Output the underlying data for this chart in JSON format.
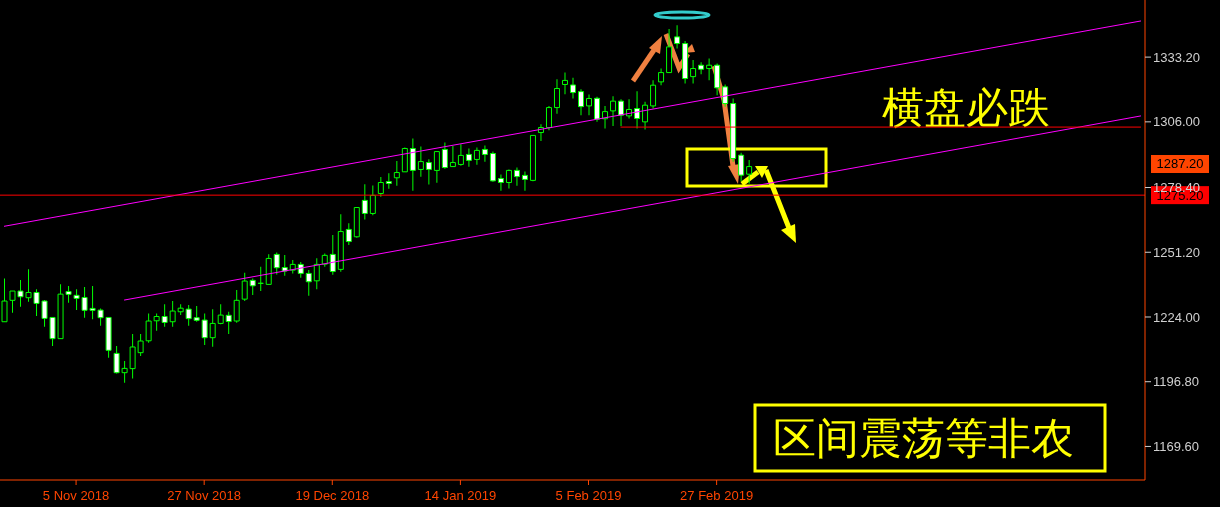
{
  "chart_data": {
    "type": "candlestick",
    "categories": [
      null,
      null,
      null,
      null,
      null,
      null,
      null,
      null,
      null,
      "5 Nov 2018",
      null,
      null,
      null,
      null,
      null,
      null,
      null,
      null,
      null,
      null,
      null,
      null,
      null,
      null,
      null,
      "27 Nov 2018",
      null,
      null,
      null,
      null,
      null,
      null,
      null,
      null,
      null,
      null,
      null,
      null,
      null,
      null,
      null,
      "19 Dec 2018",
      null,
      null,
      null,
      null,
      null,
      null,
      null,
      null,
      null,
      null,
      null,
      null,
      null,
      null,
      null,
      "14 Jan 2019",
      null,
      null,
      null,
      null,
      null,
      null,
      null,
      null,
      null,
      null,
      null,
      null,
      null,
      null,
      null,
      "5 Feb 2019",
      null,
      null,
      null,
      null,
      null,
      null,
      null,
      null,
      null,
      null,
      null,
      null,
      null,
      null,
      null,
      "27 Feb 2019",
      null,
      null,
      null,
      null,
      null,
      null,
      null,
      null,
      null,
      null,
      null,
      null,
      null,
      null,
      null,
      null,
      null,
      null,
      null,
      null,
      null,
      null,
      null,
      null,
      null,
      null,
      null,
      null,
      null,
      null,
      null,
      null,
      null,
      null,
      null,
      null,
      null,
      null,
      null,
      null,
      null,
      null,
      null,
      null,
      null,
      null,
      null,
      null,
      null,
      null,
      null,
      null,
      null
    ],
    "color": "#00ff00",
    "ohlc": [
      [
        1222,
        1240.2,
        1222,
        1230.7
      ],
      [
        1231,
        1234.9,
        1225.8,
        1234.9
      ],
      [
        1234.9,
        1239.5,
        1228.3,
        1232.5
      ],
      [
        1232.1,
        1244.1,
        1230.4,
        1234.3
      ],
      [
        1234.3,
        1235.7,
        1224.4,
        1229.7
      ],
      [
        1230.7,
        1231.1,
        1219.9,
        1223.4
      ],
      [
        1223.8,
        1223.8,
        1211.8,
        1214.9
      ],
      [
        1214.9,
        1237.8,
        1214.9,
        1233.6
      ],
      [
        1234.7,
        1237,
        1230,
        1233.5
      ],
      [
        1233.1,
        1235.7,
        1226.9,
        1231.8
      ],
      [
        1232.2,
        1236.6,
        1223.7,
        1226.8
      ],
      [
        1227.6,
        1237,
        1223.1,
        1226.8
      ],
      [
        1226.9,
        1227.6,
        1220.3,
        1223.7
      ],
      [
        1223.8,
        1223.8,
        1206.9,
        1210
      ],
      [
        1208.7,
        1211.8,
        1200.3,
        1200.6
      ],
      [
        1200.6,
        1205.5,
        1196.4,
        1202.4
      ],
      [
        1202.3,
        1216.8,
        1198.1,
        1211.4
      ],
      [
        1209,
        1216.8,
        1207.6,
        1213.9
      ],
      [
        1214,
        1225.5,
        1213.2,
        1222.3
      ],
      [
        1222.4,
        1225.5,
        1218.2,
        1224.2
      ],
      [
        1224.2,
        1229.4,
        1219.9,
        1221.7
      ],
      [
        1222,
        1230.7,
        1219.9,
        1226.5
      ],
      [
        1226.2,
        1229.4,
        1224.8,
        1227.7
      ],
      [
        1227.3,
        1229,
        1220.3,
        1223.3
      ],
      [
        1223.7,
        1228.6,
        1222,
        1222.6
      ],
      [
        1222.7,
        1225.5,
        1212.2,
        1215.3
      ],
      [
        1215.3,
        1227.3,
        1211.5,
        1221.3
      ],
      [
        1221.3,
        1229.4,
        1220.9,
        1224.8
      ],
      [
        1224.7,
        1226.2,
        1216.8,
        1222.1
      ],
      [
        1222.3,
        1235.3,
        1221.6,
        1231
      ],
      [
        1231.5,
        1242.6,
        1230.7,
        1239.1
      ],
      [
        1239.4,
        1240.2,
        1233.2,
        1237.1
      ],
      [
        1238.1,
        1245.1,
        1234.9,
        1238.2
      ],
      [
        1237.7,
        1250.4,
        1237.7,
        1248.6
      ],
      [
        1250.3,
        1251.1,
        1241.9,
        1244.7
      ],
      [
        1244.8,
        1250,
        1241.3,
        1243.3
      ],
      [
        1243.7,
        1247.9,
        1242.3,
        1246.1
      ],
      [
        1246.1,
        1247.1,
        1240.5,
        1242.3
      ],
      [
        1242.3,
        1243.7,
        1232.9,
        1238.8
      ],
      [
        1239.2,
        1248.7,
        1235.7,
        1246.1
      ],
      [
        1246.2,
        1250.7,
        1245.1,
        1249.9
      ],
      [
        1250.3,
        1258.4,
        1241.7,
        1243.1
      ],
      [
        1244,
        1267.2,
        1243,
        1259.9
      ],
      [
        1260.8,
        1263.4,
        1254.2,
        1255.7
      ],
      [
        1257.7,
        1270,
        1257.3,
        1270
      ],
      [
        1273,
        1279.8,
        1265,
        1267.5
      ],
      [
        1267.5,
        1279.3,
        1266.8,
        1275.1
      ],
      [
        1275.9,
        1282.8,
        1274.5,
        1280.5
      ],
      [
        1280.9,
        1284.4,
        1277.9,
        1280.1
      ],
      [
        1282.5,
        1289.5,
        1279.1,
        1284.7
      ],
      [
        1285,
        1295.2,
        1285,
        1294.8
      ],
      [
        1294.8,
        1299,
        1277,
        1285.6
      ],
      [
        1286,
        1295.6,
        1282.9,
        1289.3
      ],
      [
        1288.9,
        1290.3,
        1279.7,
        1286
      ],
      [
        1285.6,
        1293.5,
        1280.4,
        1293.5
      ],
      [
        1294.4,
        1297.3,
        1286.3,
        1286.8
      ],
      [
        1287.2,
        1295.8,
        1287.2,
        1288.9
      ],
      [
        1288.1,
        1296.6,
        1287.5,
        1291.9
      ],
      [
        1292.3,
        1294.8,
        1287.1,
        1289.8
      ],
      [
        1290.2,
        1295.2,
        1288,
        1294
      ],
      [
        1294.4,
        1296.1,
        1289.2,
        1292.3
      ],
      [
        1292.7,
        1293.5,
        1280.8,
        1281.2
      ],
      [
        1282.2,
        1283.9,
        1277,
        1280.5
      ],
      [
        1280.5,
        1286,
        1278,
        1285.6
      ],
      [
        1285.6,
        1286.8,
        1279.1,
        1283
      ],
      [
        1283.5,
        1285.1,
        1277,
        1281.8
      ],
      [
        1281.4,
        1300.3,
        1281,
        1300.3
      ],
      [
        1301.5,
        1305,
        1298,
        1303.6
      ],
      [
        1303.6,
        1312.7,
        1302.5,
        1312
      ],
      [
        1312,
        1323.9,
        1309.4,
        1320
      ],
      [
        1321.7,
        1326.7,
        1317.6,
        1323.4
      ],
      [
        1321.5,
        1324.5,
        1315.8,
        1318.3
      ],
      [
        1318.7,
        1319.7,
        1308.8,
        1312.4
      ],
      [
        1312.7,
        1317.5,
        1308.8,
        1315.8
      ],
      [
        1315.9,
        1316.5,
        1306,
        1307.1
      ],
      [
        1307.3,
        1312.7,
        1303.2,
        1310.3
      ],
      [
        1310.6,
        1316.8,
        1304.3,
        1314.7
      ],
      [
        1314.7,
        1315.5,
        1304.3,
        1308.8
      ],
      [
        1308.5,
        1315.5,
        1307.4,
        1311.2
      ],
      [
        1311.6,
        1318.9,
        1303.2,
        1307.4
      ],
      [
        1306,
        1314.4,
        1302.8,
        1313
      ],
      [
        1312.7,
        1323.5,
        1311.6,
        1321.4
      ],
      [
        1322.8,
        1328.4,
        1321.4,
        1326.7
      ],
      [
        1326.7,
        1345,
        1326.7,
        1337.5
      ],
      [
        1341.7,
        1346.6,
        1336.8,
        1338.9
      ],
      [
        1338.9,
        1340,
        1322.1,
        1324.2
      ],
      [
        1325,
        1332,
        1322.1,
        1328.4
      ],
      [
        1329.8,
        1331,
        1326,
        1328.1
      ],
      [
        1328.4,
        1332.6,
        1323.5,
        1329.8
      ],
      [
        1329.8,
        1330.5,
        1317.2,
        1320.3
      ],
      [
        1320.7,
        1321.7,
        1312.3,
        1313.7
      ],
      [
        1313.7,
        1315.8,
        1289.2,
        1290.6
      ],
      [
        1292,
        1293,
        1281,
        1283.6
      ],
      [
        1284,
        1290,
        1280,
        1287.2
      ],
      null,
      null,
      null,
      null,
      null,
      null,
      null,
      null,
      null,
      null,
      null,
      null,
      null,
      null,
      null,
      null,
      null,
      null,
      null,
      null,
      null,
      null,
      null,
      null,
      null,
      null,
      null,
      null,
      null,
      null,
      null,
      null,
      null,
      null,
      null,
      null,
      null,
      null,
      null,
      null,
      null,
      null,
      null,
      null,
      null,
      null,
      null,
      null,
      null
    ],
    "series": [
      {
        "type": "line",
        "color": "#ff00ff",
        "values": [
          1262.1,
          null,
          null,
          null,
          null,
          null,
          null,
          null,
          null,
          null,
          null,
          null,
          null,
          null,
          null,
          null,
          null,
          null,
          null,
          null,
          null,
          null,
          null,
          null,
          null,
          null,
          null,
          null,
          null,
          null,
          null,
          null,
          null,
          null,
          null,
          null,
          null,
          null,
          null,
          null,
          null,
          null,
          null,
          null,
          null,
          null,
          null,
          null,
          null,
          null,
          null,
          null,
          null,
          null,
          null,
          null,
          null,
          null,
          null,
          null,
          null,
          null,
          null,
          null,
          null,
          null,
          null,
          null,
          null,
          null,
          null,
          null,
          null,
          null,
          null,
          null,
          null,
          null,
          null,
          null,
          null,
          null,
          null,
          null,
          null,
          null,
          null,
          null,
          null,
          null,
          null,
          null,
          null,
          null,
          null,
          null,
          null,
          null,
          null,
          null,
          null,
          null,
          null,
          null,
          null,
          null,
          null,
          null,
          null,
          null,
          null,
          null,
          null,
          null,
          null,
          null,
          null,
          null,
          null,
          null,
          null,
          null,
          null,
          null,
          null,
          null,
          null,
          null,
          null,
          null,
          null,
          null,
          null,
          null,
          null,
          null,
          null,
          null,
          null,
          null,
          null,
          null,
          1348.4
        ]
      },
      {
        "type": "line",
        "color": "#ff00ff",
        "values": [
          null,
          null,
          null,
          null,
          null,
          null,
          null,
          null,
          null,
          null,
          null,
          null,
          null,
          null,
          null,
          1231.1,
          null,
          null,
          null,
          null,
          null,
          null,
          null,
          null,
          null,
          null,
          null,
          null,
          null,
          null,
          null,
          null,
          null,
          null,
          null,
          null,
          null,
          null,
          null,
          null,
          null,
          null,
          null,
          null,
          null,
          null,
          null,
          null,
          null,
          null,
          null,
          null,
          null,
          null,
          null,
          null,
          null,
          null,
          null,
          null,
          null,
          null,
          null,
          null,
          null,
          null,
          null,
          null,
          null,
          null,
          null,
          null,
          null,
          null,
          null,
          null,
          null,
          null,
          null,
          null,
          null,
          null,
          null,
          null,
          null,
          null,
          null,
          null,
          null,
          null,
          null,
          null,
          null,
          null,
          null,
          null,
          null,
          null,
          null,
          null,
          null,
          null,
          null,
          null,
          null,
          null,
          null,
          null,
          null,
          null,
          null,
          null,
          null,
          null,
          null,
          null,
          null,
          null,
          null,
          null,
          null,
          null,
          null,
          null,
          null,
          null,
          null,
          null,
          null,
          null,
          null,
          null,
          null,
          null,
          null,
          null,
          null,
          null,
          null,
          null,
          null,
          null,
          1308.5
        ]
      },
      {
        "type": "line",
        "color": "#ff0000",
        "values": [
          null,
          null,
          null,
          null,
          null,
          null,
          null,
          null,
          null,
          null,
          null,
          null,
          null,
          null,
          null,
          null,
          null,
          null,
          null,
          null,
          null,
          null,
          null,
          null,
          null,
          null,
          null,
          null,
          null,
          null,
          null,
          null,
          null,
          null,
          null,
          null,
          null,
          null,
          null,
          null,
          null,
          null,
          null,
          null,
          null,
          null,
          null,
          null,
          null,
          null,
          null,
          null,
          null,
          null,
          null,
          null,
          null,
          null,
          null,
          null,
          null,
          null,
          null,
          null,
          null,
          null,
          null,
          null,
          null,
          null,
          null,
          null,
          null,
          null,
          null,
          null,
          null,
          1303.8,
          null,
          null,
          null,
          null,
          null,
          null,
          null,
          null,
          null,
          null,
          null,
          null,
          null,
          null,
          null,
          null,
          null,
          null,
          null,
          null,
          null,
          null,
          null,
          null,
          null,
          null,
          null,
          null,
          null,
          null,
          null,
          null,
          null,
          null,
          null,
          null,
          null,
          null,
          null,
          null,
          null,
          null,
          null,
          null,
          null,
          null,
          null,
          null,
          null,
          null,
          null,
          null,
          null,
          null,
          null,
          null,
          null,
          null,
          null,
          null,
          null,
          null,
          null,
          null,
          1303.8
        ]
      }
    ],
    "ylim": [
      1155.5,
      1357.2
    ],
    "yticks": [
      {
        "value": 1169.6,
        "label": "1169.60"
      },
      {
        "value": 1196.8,
        "label": "1196.80"
      },
      {
        "value": 1224,
        "label": "1224.00"
      },
      {
        "value": 1251.2,
        "label": "1251.20"
      },
      {
        "value": 1278.4,
        "label": "1278.40"
      },
      {
        "value": 1306,
        "label": "1306.00"
      },
      {
        "value": 1333.2,
        "label": "1333.20"
      }
    ],
    "ref_lines": [
      {
        "axis": "y",
        "value": 1275.2,
        "label": "1275.20",
        "color": "#ff0000"
      }
    ],
    "annotations": [
      "横盘必跌",
      "区间震荡等非农",
      "1287.20"
    ]
  }
}
